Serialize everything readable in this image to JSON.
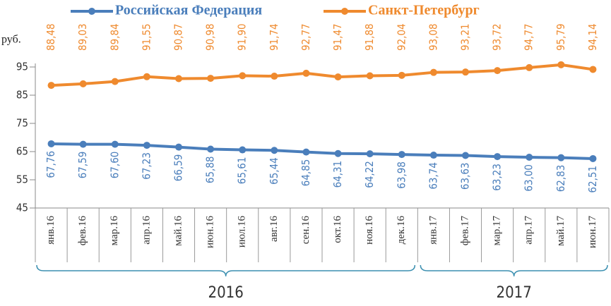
{
  "chart_data": {
    "type": "line",
    "y_label": "руб.",
    "categories": [
      "янв.16",
      "фев.16",
      "мар.16",
      "апр.16",
      "май.16",
      "июн.16",
      "июл.16",
      "авг.16",
      "сен.16",
      "окт.16",
      "ноя.16",
      "дек.16",
      "янв.17",
      "фев.17",
      "мар.17",
      "апр.17",
      "май.17",
      "июн.17"
    ],
    "groups": [
      "2016",
      "2017"
    ],
    "series": [
      {
        "name": "Российская Федерация",
        "color": "#4a7ebb",
        "values": [
          67.76,
          67.59,
          67.6,
          67.23,
          66.59,
          65.88,
          65.61,
          65.44,
          64.85,
          64.31,
          64.22,
          63.98,
          63.74,
          63.63,
          63.23,
          63.0,
          62.83,
          62.51
        ],
        "value_labels": [
          "67,76",
          "67,59",
          "67,60",
          "67,23",
          "66,59",
          "65,88",
          "65,61",
          "65,44",
          "64,85",
          "64,31",
          "64,22",
          "63,98",
          "63,74",
          "63,63",
          "63,23",
          "63,00",
          "62,83",
          "62,51"
        ]
      },
      {
        "name": "Санкт-Петербург",
        "color": "#ef8a2e",
        "values": [
          88.48,
          89.03,
          89.84,
          91.55,
          90.87,
          90.98,
          91.9,
          91.74,
          92.77,
          91.47,
          91.88,
          92.04,
          93.08,
          93.21,
          93.72,
          94.77,
          95.79,
          94.14
        ],
        "value_labels": [
          "88,48",
          "89,03",
          "89,84",
          "91,55",
          "90,87",
          "90,98",
          "91,90",
          "91,74",
          "92,77",
          "91,47",
          "91,88",
          "92,04",
          "93,08",
          "93,21",
          "93,72",
          "94,77",
          "95,79",
          "94,14"
        ]
      }
    ],
    "ylim": [
      45,
      105
    ],
    "yticks": [
      45,
      55,
      65,
      75,
      85,
      95
    ],
    "grid": false
  }
}
